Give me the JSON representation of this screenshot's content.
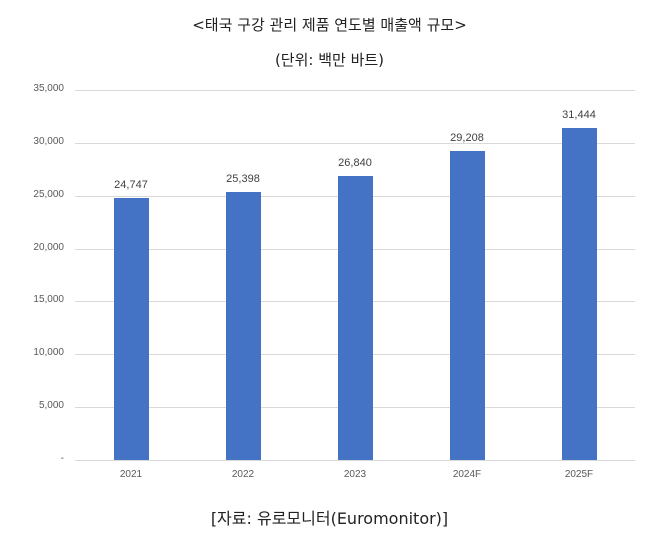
{
  "header": {
    "title": "<태국 구강 관리 제품 연도별 매출액 규모>",
    "subtitle": "(단위: 백만 바트)"
  },
  "footer": {
    "source": "[자료: 유로모니터(Euromonitor)]"
  },
  "colors": {
    "bar": "#4472C4",
    "grid": "#D9D9D9"
  },
  "chart_data": {
    "type": "bar",
    "title": "<태국 구강 관리 제품 연도별 매출액 규모>",
    "subtitle": "(단위: 백만 바트)",
    "categories": [
      "2021",
      "2022",
      "2023",
      "2024F",
      "2025F"
    ],
    "values": [
      24747,
      25398,
      26840,
      29208,
      31444
    ],
    "data_labels": [
      "24,747",
      "25,398",
      "26,840",
      "29,208",
      "31,444"
    ],
    "xlabel": "",
    "ylabel": "",
    "ylim": [
      0,
      35000
    ],
    "yticks": [
      0,
      5000,
      10000,
      15000,
      20000,
      25000,
      30000,
      35000
    ],
    "ytick_labels": [
      "-",
      "5,000",
      "10,000",
      "15,000",
      "20,000",
      "25,000",
      "30,000",
      "35,000"
    ],
    "grid": true,
    "legend": null,
    "source": "[자료: 유로모니터(Euromonitor)]"
  }
}
